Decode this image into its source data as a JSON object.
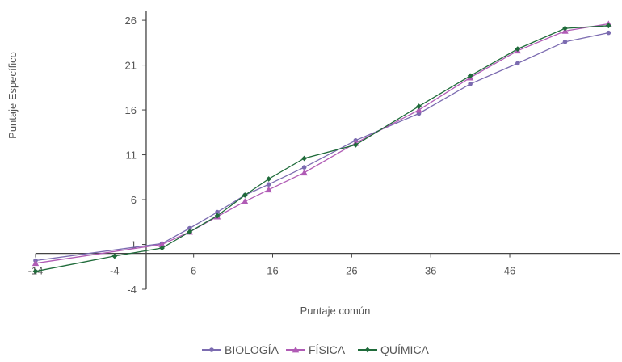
{
  "chart_data": {
    "type": "line",
    "xlabel": "Puntaje común",
    "ylabel": "Puntaje Específico",
    "xlim": [
      -14,
      60
    ],
    "ylim": [
      -4,
      27
    ],
    "x_axis_tick_labels": [
      "-14",
      "-4",
      "6",
      "16",
      "26",
      "36",
      "46"
    ],
    "x_axis_ticks": [
      -14,
      -4,
      6,
      16,
      26,
      36,
      46
    ],
    "y_axis_tick_labels": [
      "-4",
      "1",
      "6",
      "11",
      "16",
      "21",
      "26"
    ],
    "y_axis_ticks": [
      -4,
      1,
      6,
      11,
      16,
      21,
      26
    ],
    "legend_position": "bottom",
    "grid": false,
    "series": [
      {
        "name": "BIOLOGÍA",
        "color": "#7b6bb0",
        "marker": "circle",
        "points": [
          [
            -14,
            -0.8
          ],
          [
            2,
            1.1
          ],
          [
            5.5,
            2.8
          ],
          [
            9,
            4.6
          ],
          [
            12.5,
            6.5
          ],
          [
            15.5,
            7.7
          ],
          [
            20,
            9.6
          ],
          [
            26.5,
            12.6
          ],
          [
            34.5,
            15.6
          ],
          [
            41,
            18.9
          ],
          [
            47,
            21.2
          ],
          [
            53,
            23.6
          ],
          [
            58.5,
            24.6
          ]
        ]
      },
      {
        "name": "FÍSICA",
        "color": "#b05bb5",
        "marker": "triangle",
        "points": [
          [
            -14,
            -1.1
          ],
          [
            2,
            1.0
          ],
          [
            5.5,
            2.4
          ],
          [
            9,
            4.1
          ],
          [
            12.5,
            5.8
          ],
          [
            15.5,
            7.1
          ],
          [
            20,
            9.0
          ],
          [
            26.5,
            12.3
          ],
          [
            34.5,
            16.0
          ],
          [
            41,
            19.6
          ],
          [
            47,
            22.6
          ],
          [
            53,
            24.8
          ],
          [
            58.5,
            25.6
          ]
        ]
      },
      {
        "name": "QUÍMICA",
        "color": "#1f6b3a",
        "marker": "diamond",
        "points": [
          [
            -14,
            -2.0
          ],
          [
            -4,
            -0.3
          ],
          [
            2,
            0.6
          ],
          [
            5.5,
            2.4
          ],
          [
            9,
            4.2
          ],
          [
            12.5,
            6.5
          ],
          [
            15.5,
            8.3
          ],
          [
            20,
            10.6
          ],
          [
            26.5,
            12.1
          ],
          [
            34.5,
            16.4
          ],
          [
            41,
            19.8
          ],
          [
            47,
            22.8
          ],
          [
            53,
            25.1
          ],
          [
            58.5,
            25.4
          ]
        ]
      }
    ]
  }
}
